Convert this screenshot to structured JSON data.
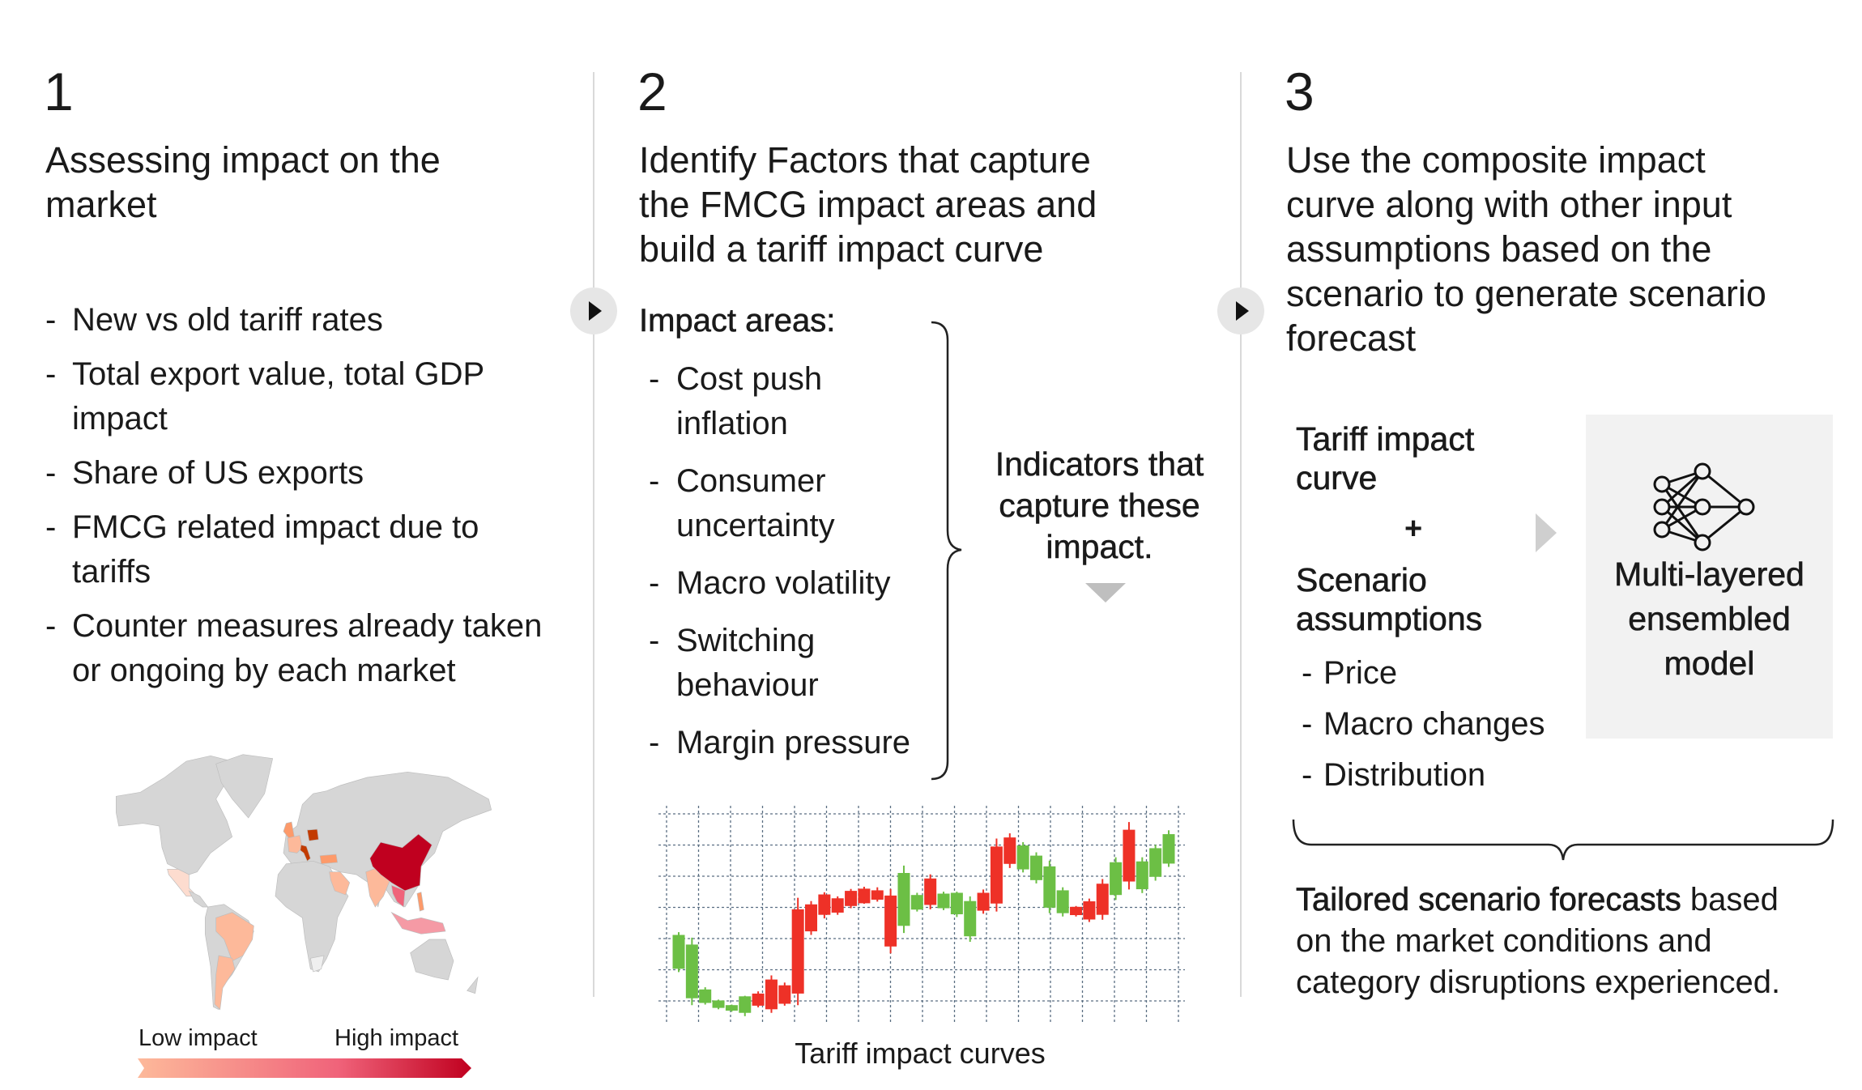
{
  "col1": {
    "number": "1",
    "heading": [
      "Assessing impact on the",
      "market"
    ],
    "bullets": [
      [
        "New vs old tariff rates"
      ],
      [
        "Total export value, total GDP",
        "impact"
      ],
      [
        "Share of US exports"
      ],
      [
        "FMCG related impact due to",
        "tariffs"
      ],
      [
        "Counter measures already taken",
        "or ongoing by each market"
      ]
    ],
    "map": {
      "legend_low": "Low impact",
      "legend_high": "High impact",
      "colors": {
        "base": "#d6d6d6",
        "low": "#fdb99a",
        "mid": "#f0637a",
        "high": "#c0001f",
        "dark_orange": "#c23b00"
      }
    }
  },
  "col2": {
    "number": "2",
    "heading": [
      "Identify Factors that capture",
      "the FMCG impact areas and",
      "build a tariff impact curve"
    ],
    "impact_title": "Impact areas:",
    "bullets": [
      [
        "Cost push",
        "inflation"
      ],
      [
        "Consumer",
        "uncertainty"
      ],
      [
        "Macro volatility"
      ],
      [
        "Switching",
        "behaviour"
      ],
      [
        "Margin pressure"
      ]
    ],
    "indicators": [
      "Indicators that",
      "capture these",
      "impact."
    ],
    "chart_caption": "Tariff impact curves",
    "candles": [
      {
        "o": 202,
        "c": 325,
        "h": 335,
        "l": 190,
        "dir": "up"
      },
      {
        "o": 95,
        "c": 290,
        "h": 315,
        "l": 70,
        "dir": "up"
      },
      {
        "o": 78,
        "c": 127,
        "h": 135,
        "l": 72,
        "dir": "up"
      },
      {
        "o": 60,
        "c": 87,
        "h": 90,
        "l": 55,
        "dir": "up"
      },
      {
        "o": 50,
        "c": 70,
        "h": 72,
        "l": 46,
        "dir": "up"
      },
      {
        "o": 42,
        "c": 102,
        "h": 104,
        "l": 30,
        "dir": "up"
      },
      {
        "o": 112,
        "c": 68,
        "h": 120,
        "l": 62,
        "dir": "down"
      },
      {
        "o": 163,
        "c": 55,
        "h": 178,
        "l": 42,
        "dir": "down"
      },
      {
        "o": 142,
        "c": 75,
        "h": 152,
        "l": 68,
        "dir": "down"
      },
      {
        "o": 418,
        "c": 112,
        "h": 460,
        "l": 70,
        "dir": "down"
      },
      {
        "o": 436,
        "c": 338,
        "h": 448,
        "l": 325,
        "dir": "down"
      },
      {
        "o": 472,
        "c": 398,
        "h": 480,
        "l": 385,
        "dir": "down"
      },
      {
        "o": 458,
        "c": 406,
        "h": 465,
        "l": 398,
        "dir": "down"
      },
      {
        "o": 485,
        "c": 430,
        "h": 492,
        "l": 422,
        "dir": "down"
      },
      {
        "o": 493,
        "c": 440,
        "h": 500,
        "l": 438,
        "dir": "down"
      },
      {
        "o": 487,
        "c": 453,
        "h": 498,
        "l": 446,
        "dir": "down"
      },
      {
        "o": 468,
        "c": 283,
        "h": 492,
        "l": 258,
        "dir": "down"
      },
      {
        "o": 358,
        "c": 550,
        "h": 577,
        "l": 332,
        "dir": "up"
      },
      {
        "o": 417,
        "c": 470,
        "h": 478,
        "l": 410,
        "dir": "up"
      },
      {
        "o": 530,
        "c": 434,
        "h": 545,
        "l": 418,
        "dir": "down"
      },
      {
        "o": 422,
        "c": 475,
        "h": 482,
        "l": 415,
        "dir": "up"
      },
      {
        "o": 400,
        "c": 478,
        "h": 482,
        "l": 390,
        "dir": "up"
      },
      {
        "o": 320,
        "c": 448,
        "h": 465,
        "l": 300,
        "dir": "up"
      },
      {
        "o": 478,
        "c": 413,
        "h": 490,
        "l": 402,
        "dir": "down"
      },
      {
        "o": 646,
        "c": 439,
        "h": 675,
        "l": 410,
        "dir": "down"
      },
      {
        "o": 679,
        "c": 583,
        "h": 694,
        "l": 568,
        "dir": "down"
      },
      {
        "o": 563,
        "c": 650,
        "h": 662,
        "l": 552,
        "dir": "up"
      },
      {
        "o": 524,
        "c": 613,
        "h": 625,
        "l": 512,
        "dir": "up"
      },
      {
        "o": 424,
        "c": 574,
        "h": 595,
        "l": 404,
        "dir": "up"
      },
      {
        "o": 404,
        "c": 487,
        "h": 498,
        "l": 392,
        "dir": "up"
      },
      {
        "o": 427,
        "c": 397,
        "h": 430,
        "l": 392,
        "dir": "down"
      },
      {
        "o": 447,
        "c": 381,
        "h": 457,
        "l": 372,
        "dir": "down"
      },
      {
        "o": 511,
        "c": 398,
        "h": 528,
        "l": 380,
        "dir": "down"
      },
      {
        "o": 470,
        "c": 589,
        "h": 607,
        "l": 452,
        "dir": "up"
      },
      {
        "o": 707,
        "c": 519,
        "h": 735,
        "l": 490,
        "dir": "down"
      },
      {
        "o": 491,
        "c": 592,
        "h": 607,
        "l": 477,
        "dir": "up"
      },
      {
        "o": 536,
        "c": 640,
        "h": 652,
        "l": 522,
        "dir": "up"
      },
      {
        "o": 584,
        "c": 691,
        "h": 705,
        "l": 572,
        "dir": "up"
      }
    ],
    "candle_colors": {
      "up": "#6cbf45",
      "down": "#ee3127"
    }
  },
  "col3": {
    "number": "3",
    "heading": [
      "Use the composite impact",
      "curve along with other input",
      "assumptions based on the",
      "scenario to generate scenario",
      "forecast"
    ],
    "tariff_curve": [
      "Tariff impact",
      "curve"
    ],
    "plus": "+",
    "scenario": [
      "Scenario",
      "assumptions"
    ],
    "bullets": [
      "Price",
      "Macro changes",
      "Distribution"
    ],
    "model": [
      "Multi-layered",
      "ensembled",
      "model"
    ],
    "result_bold": "Tailored scenario forecasts",
    "result_rest": [
      " based",
      "on the market conditions and",
      "category disruptions experienced."
    ]
  },
  "dash": "-"
}
